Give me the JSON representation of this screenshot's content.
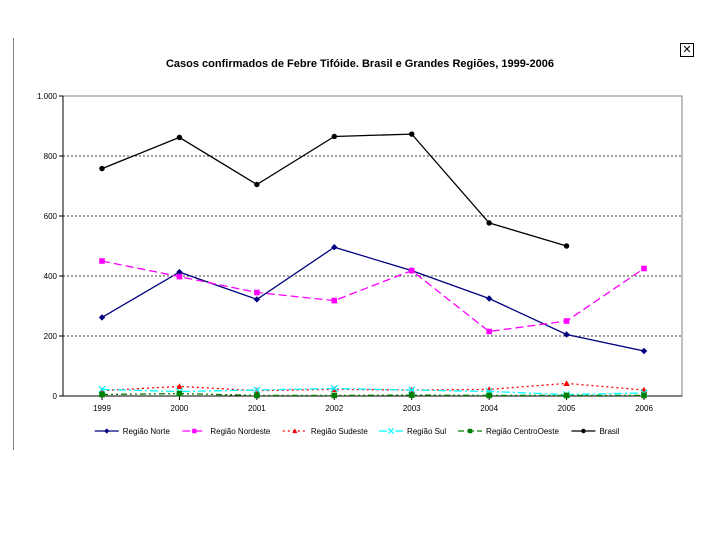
{
  "close_icon_glyph": "✕",
  "chart_data": {
    "type": "line",
    "title": "Casos confirmados de Febre Tifóide. Brasil e Grandes Regiões, 1999-2006",
    "categories": [
      "1999",
      "2000",
      "2001",
      "2002",
      "2003",
      "2004",
      "2005",
      "2006"
    ],
    "ylim": [
      0,
      1000
    ],
    "yticks": [
      0,
      200,
      400,
      600,
      800,
      1000
    ],
    "ytick_labels": [
      "0",
      "200",
      "400",
      "600",
      "800",
      "1.000"
    ],
    "grid": true,
    "legend_position": "bottom",
    "series": [
      {
        "name": "Região Norte",
        "color": "#00007f",
        "dash": "",
        "marker": "diamond",
        "values": [
          262,
          413,
          322,
          496,
          418,
          325,
          205,
          150
        ]
      },
      {
        "name": "Região Nordeste",
        "color": "#ff00ff",
        "dash": "8,4",
        "marker": "square",
        "values": [
          450,
          398,
          345,
          318,
          418,
          215,
          250,
          425
        ]
      },
      {
        "name": "Região Sudeste",
        "color": "#ff0000",
        "dash": "2,3",
        "marker": "triangle",
        "values": [
          18,
          32,
          18,
          22,
          20,
          22,
          42,
          20
        ]
      },
      {
        "name": "Região Sul",
        "color": "#00ffff",
        "dash": "8,3,2,3",
        "marker": "x",
        "values": [
          22,
          15,
          20,
          25,
          20,
          15,
          5,
          10
        ]
      },
      {
        "name": "Região CentroOeste",
        "color": "#007f00",
        "dash": "6,3,2,3,2,3",
        "marker": "square",
        "values": [
          5,
          8,
          2,
          2,
          3,
          2,
          2,
          2
        ]
      },
      {
        "name": "Brasil",
        "color": "#000000",
        "dash": "",
        "marker": "circle",
        "values": [
          758,
          862,
          705,
          865,
          873,
          577,
          500,
          null
        ]
      }
    ]
  }
}
